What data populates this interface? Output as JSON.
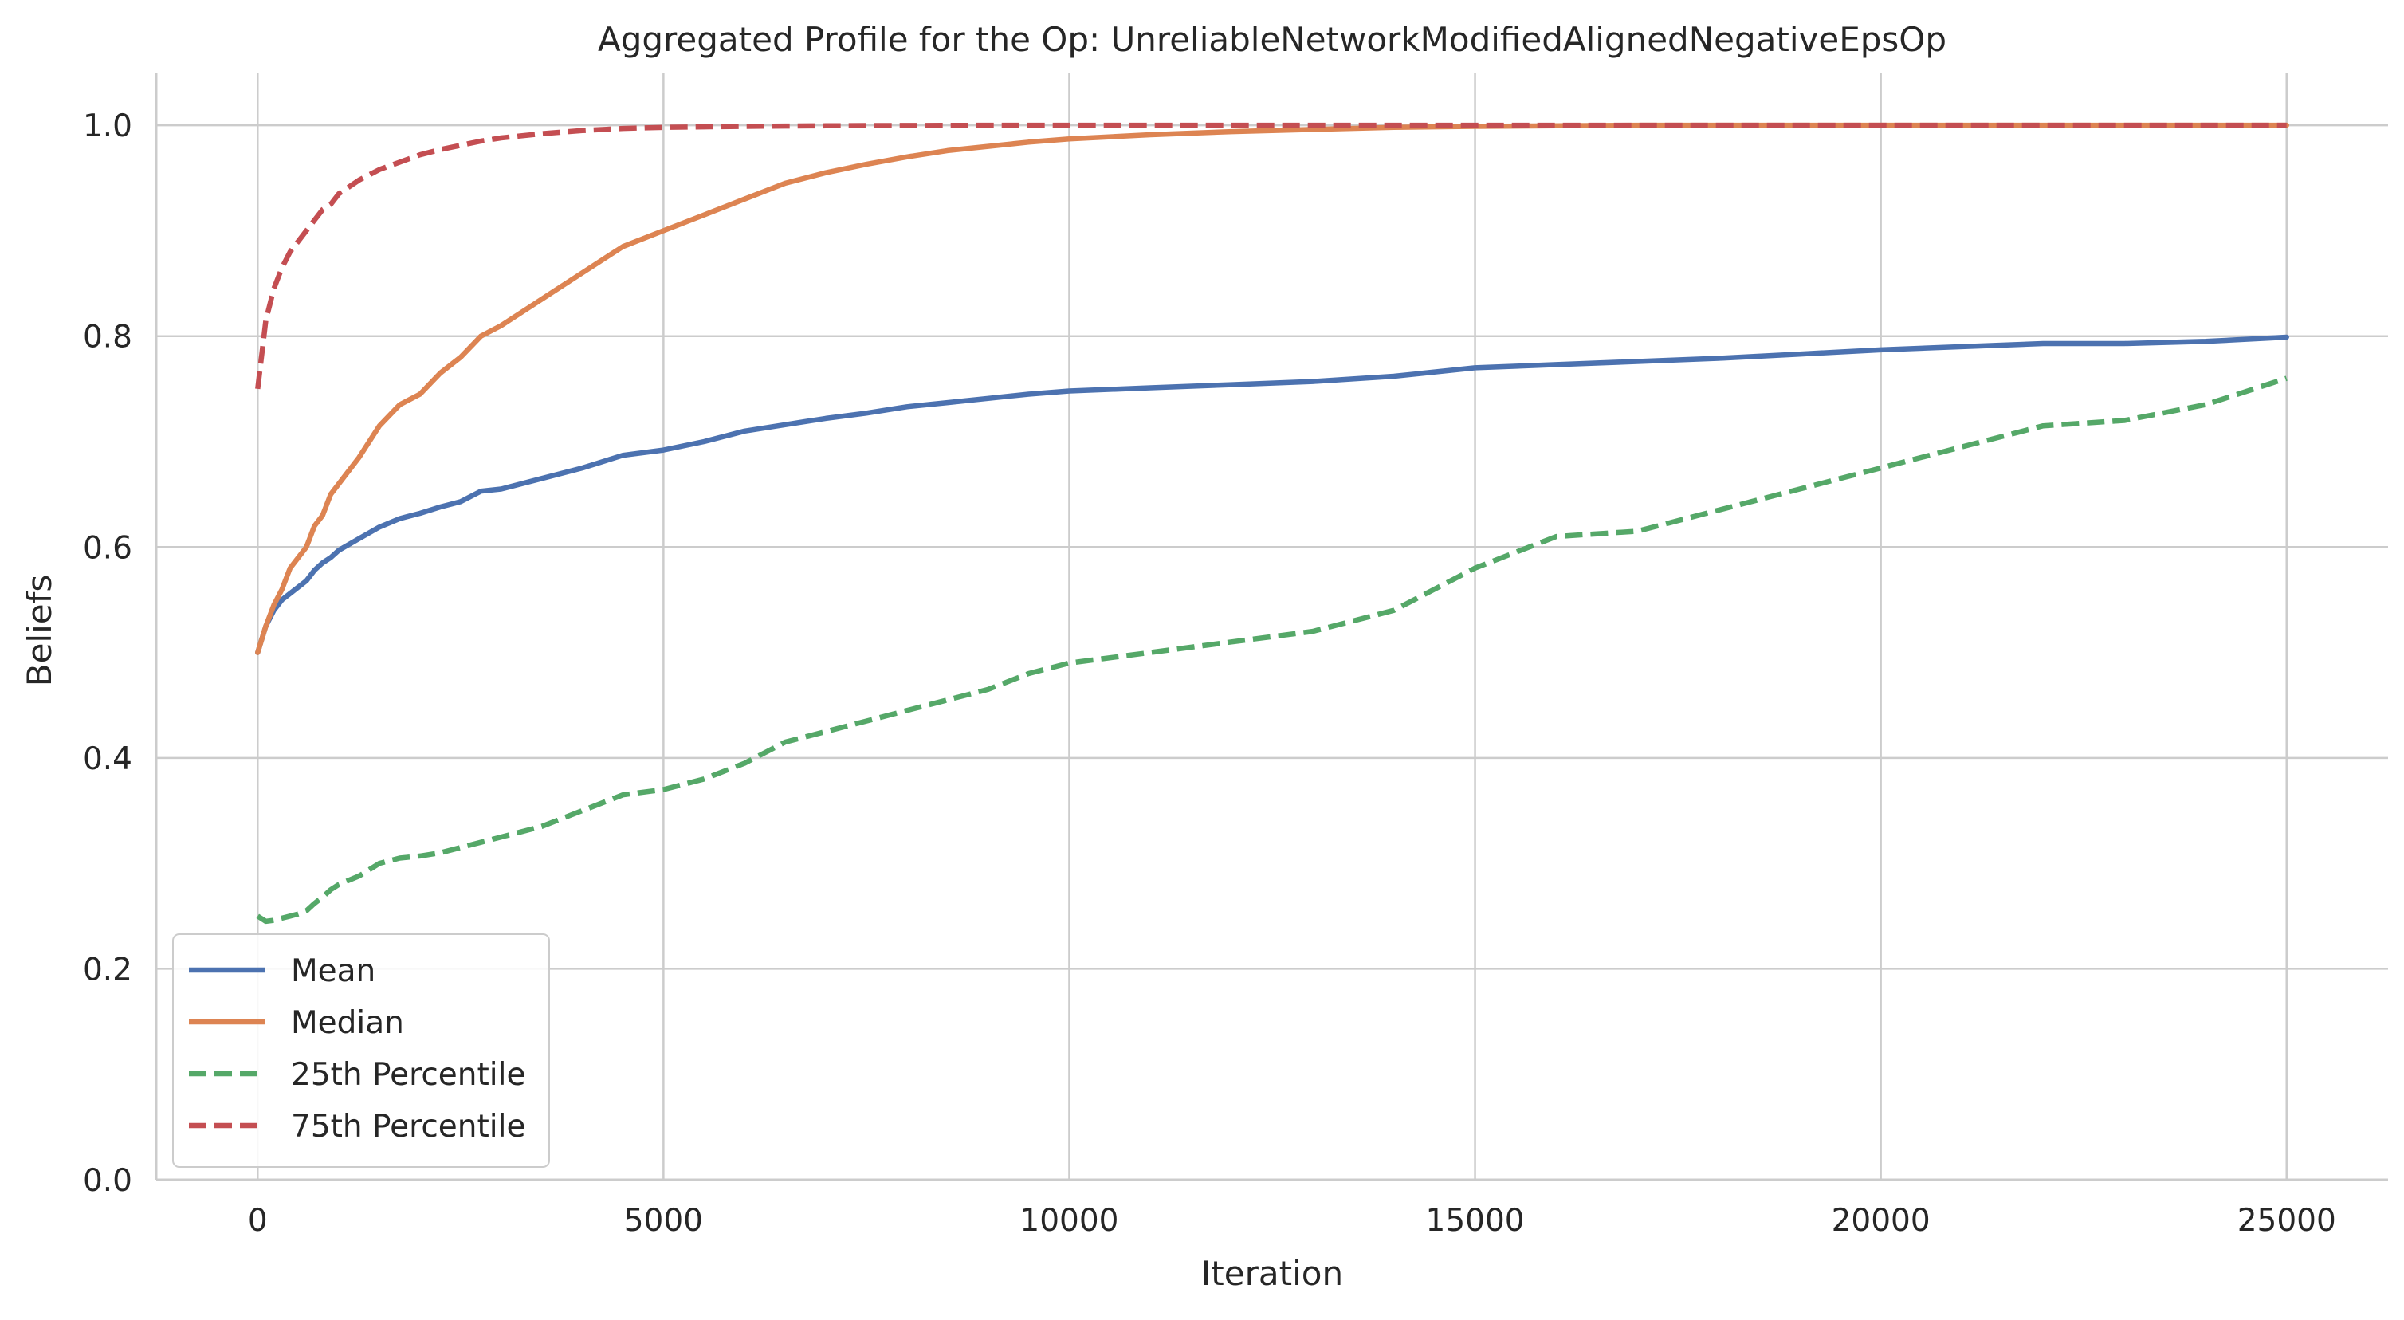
{
  "chart_data": {
    "type": "line",
    "title": "Aggregated Profile for the Op: UnreliableNetworkModifiedAlignedNegativeEpsOp",
    "xlabel": "Iteration",
    "ylabel": "Beliefs",
    "xlim": [
      -1250,
      26250
    ],
    "ylim": [
      0.0,
      1.05
    ],
    "x_ticks": [
      0,
      5000,
      10000,
      15000,
      20000,
      25000
    ],
    "x_tick_labels": [
      "0",
      "5000",
      "10000",
      "15000",
      "20000",
      "25000"
    ],
    "y_ticks": [
      0.0,
      0.2,
      0.4,
      0.6,
      0.8,
      1.0
    ],
    "y_tick_labels": [
      "0.0",
      "0.2",
      "0.4",
      "0.6",
      "0.8",
      "1.0"
    ],
    "grid": true,
    "legend_position": "lower-left",
    "x": [
      0,
      100,
      200,
      300,
      400,
      500,
      600,
      700,
      800,
      900,
      1000,
      1250,
      1500,
      1750,
      2000,
      2250,
      2500,
      2750,
      3000,
      3500,
      4000,
      4500,
      5000,
      5500,
      6000,
      6500,
      7000,
      7500,
      8000,
      8500,
      9000,
      9500,
      10000,
      11000,
      12000,
      13000,
      14000,
      15000,
      16000,
      17000,
      18000,
      19000,
      20000,
      21000,
      22000,
      23000,
      24000,
      25000
    ],
    "series": [
      {
        "name": "Mean",
        "color": "#4c72b0",
        "style": "solid",
        "values": [
          0.5,
          0.525,
          0.54,
          0.55,
          0.556,
          0.562,
          0.568,
          0.578,
          0.585,
          0.59,
          0.597,
          0.608,
          0.619,
          0.627,
          0.632,
          0.638,
          0.643,
          0.653,
          0.655,
          0.665,
          0.675,
          0.687,
          0.692,
          0.7,
          0.71,
          0.716,
          0.722,
          0.727,
          0.733,
          0.737,
          0.741,
          0.745,
          0.748,
          0.751,
          0.754,
          0.757,
          0.762,
          0.77,
          0.773,
          0.776,
          0.779,
          0.783,
          0.787,
          0.79,
          0.793,
          0.793,
          0.795,
          0.799
        ]
      },
      {
        "name": "Median",
        "color": "#dd8452",
        "style": "solid",
        "values": [
          0.5,
          0.525,
          0.545,
          0.56,
          0.58,
          0.59,
          0.6,
          0.62,
          0.63,
          0.65,
          0.66,
          0.685,
          0.715,
          0.735,
          0.745,
          0.765,
          0.78,
          0.8,
          0.81,
          0.835,
          0.86,
          0.885,
          0.9,
          0.915,
          0.93,
          0.945,
          0.955,
          0.963,
          0.97,
          0.976,
          0.98,
          0.984,
          0.987,
          0.991,
          0.994,
          0.996,
          0.998,
          0.999,
          0.9995,
          1.0,
          1.0,
          1.0,
          1.0,
          1.0,
          1.0,
          1.0,
          1.0,
          1.0
        ]
      },
      {
        "name": "25th Percentile",
        "color": "#55a868",
        "style": "dashed",
        "values": [
          0.25,
          0.245,
          0.246,
          0.248,
          0.25,
          0.252,
          0.255,
          0.262,
          0.268,
          0.275,
          0.28,
          0.288,
          0.3,
          0.305,
          0.307,
          0.31,
          0.315,
          0.32,
          0.325,
          0.335,
          0.35,
          0.365,
          0.37,
          0.38,
          0.395,
          0.415,
          0.425,
          0.435,
          0.445,
          0.455,
          0.465,
          0.48,
          0.49,
          0.5,
          0.51,
          0.52,
          0.54,
          0.58,
          0.61,
          0.615,
          0.635,
          0.655,
          0.675,
          0.695,
          0.715,
          0.72,
          0.735,
          0.76
        ]
      },
      {
        "name": "75th Percentile",
        "color": "#c44e52",
        "style": "dashed",
        "values": [
          0.75,
          0.815,
          0.845,
          0.865,
          0.88,
          0.89,
          0.9,
          0.91,
          0.92,
          0.925,
          0.935,
          0.948,
          0.958,
          0.965,
          0.972,
          0.977,
          0.981,
          0.985,
          0.988,
          0.992,
          0.995,
          0.997,
          0.998,
          0.9985,
          0.999,
          0.9993,
          0.9995,
          0.9997,
          0.9998,
          0.9999,
          1.0,
          1.0,
          1.0,
          1.0,
          1.0,
          1.0,
          1.0,
          1.0,
          1.0,
          1.0,
          1.0,
          1.0,
          1.0,
          1.0,
          1.0,
          1.0,
          1.0,
          1.0
        ]
      }
    ]
  }
}
